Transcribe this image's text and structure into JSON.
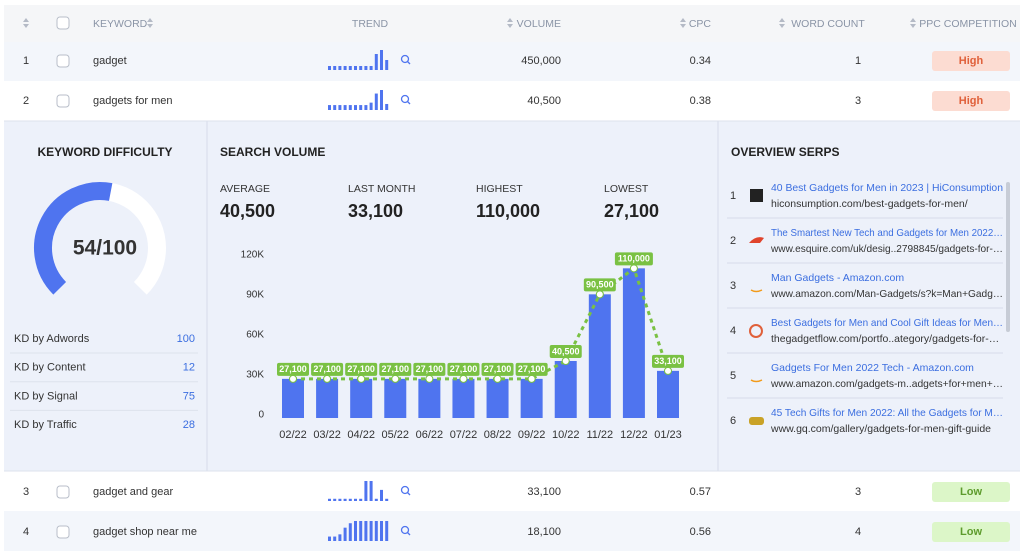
{
  "table": {
    "columns": [
      "KEYWORD",
      "TREND",
      "VOLUME",
      "CPC",
      "WORD COUNT",
      "PPC COMPETITION"
    ],
    "rows": [
      {
        "rank": 1,
        "keyword": "gadget",
        "trend": [
          2,
          2,
          2,
          2,
          2,
          2,
          2,
          2,
          2,
          8,
          10,
          5
        ],
        "volume": "450,000",
        "cpc": 0.34,
        "word_count": 1,
        "competition": "High"
      },
      {
        "rank": 2,
        "keyword": "gadgets for men",
        "trend": [
          27100,
          27100,
          27100,
          27100,
          27100,
          27100,
          27100,
          27100,
          40500,
          90500,
          110000,
          33100
        ],
        "volume": "40,500",
        "cpc": 0.38,
        "word_count": 3,
        "competition": "High"
      },
      {
        "rank": 3,
        "keyword": "gadget and gear",
        "trend": [
          1,
          1,
          1,
          1,
          1,
          1,
          1,
          9,
          9,
          1,
          5,
          1
        ],
        "volume": "33,100",
        "cpc": 0.57,
        "word_count": 3,
        "competition": "Low"
      },
      {
        "rank": 4,
        "keyword": "gadget shop near me",
        "trend": [
          2,
          2,
          3,
          6,
          8,
          9,
          9,
          9,
          9,
          9,
          9,
          9
        ],
        "volume": "18,100",
        "cpc": 0.56,
        "word_count": 4,
        "competition": "Low"
      }
    ]
  },
  "kd": {
    "title": "KEYWORD DIFFICULTY",
    "score": 54,
    "max": 100,
    "score_label": "54/100",
    "items": [
      {
        "label": "KD by Adwords",
        "value": 100
      },
      {
        "label": "KD by Content",
        "value": 12
      },
      {
        "label": "KD by Signal",
        "value": 75
      },
      {
        "label": "KD by Traffic",
        "value": 28
      }
    ]
  },
  "search_volume": {
    "title": "SEARCH VOLUME",
    "stats": [
      {
        "label": "AVERAGE",
        "value": "40,500"
      },
      {
        "label": "LAST MONTH",
        "value": "33,100"
      },
      {
        "label": "HIGHEST",
        "value": "110,000"
      },
      {
        "label": "LOWEST",
        "value": "27,100"
      }
    ]
  },
  "chart_data": {
    "type": "bar",
    "categories": [
      "02/22",
      "03/22",
      "04/22",
      "05/22",
      "06/22",
      "07/22",
      "08/22",
      "09/22",
      "10/22",
      "11/22",
      "12/22",
      "01/23"
    ],
    "values": [
      27100,
      27100,
      27100,
      27100,
      27100,
      27100,
      27100,
      27100,
      40500,
      90500,
      110000,
      33100
    ],
    "value_labels": [
      "27,100",
      "27,100",
      "27,100",
      "27,100",
      "27,100",
      "27,100",
      "27,100",
      "27,100",
      "40,500",
      "90,500",
      "110,000",
      "33,100"
    ],
    "color": "#4f74ef",
    "line_color": "#7ac143",
    "ylim": [
      0,
      120000
    ],
    "yticks": [
      0,
      {
        "value": 30000,
        "label": "30K"
      },
      {
        "value": 60000,
        "label": "60K"
      },
      {
        "value": 90000,
        "label": "90K"
      },
      {
        "value": 120000,
        "label": "120K"
      }
    ]
  },
  "serps": {
    "title": "OVERVIEW SERPS",
    "items": [
      {
        "rank": 1,
        "title": "40 Best Gadgets for Men in 2023 | HiConsumption",
        "url": "hiconsumption.com/best-gadgets-for-men/"
      },
      {
        "rank": 2,
        "title": "The Smartest New Tech and Gadgets for Men 2022…",
        "url": "www.esquire.com/uk/desig..2798845/gadgets-for-…"
      },
      {
        "rank": 3,
        "title": "Man Gadgets - Amazon.com",
        "url": "www.amazon.com/Man-Gadgets/s?k=Man+Gadg…"
      },
      {
        "rank": 4,
        "title": "Best Gadgets for Men and Cool Gift Ideas for Men…",
        "url": "thegadgetflow.com/portfo..ategory/gadgets-for-…"
      },
      {
        "rank": 5,
        "title": "Gadgets For Men 2022 Tech - Amazon.com",
        "url": "www.amazon.com/gadgets-m..adgets+for+men+…"
      },
      {
        "rank": 6,
        "title": "45 Tech Gifts for Men 2022: All the Gadgets for M…",
        "url": "www.gq.com/gallery/gadgets-for-men-gift-guide"
      }
    ]
  }
}
